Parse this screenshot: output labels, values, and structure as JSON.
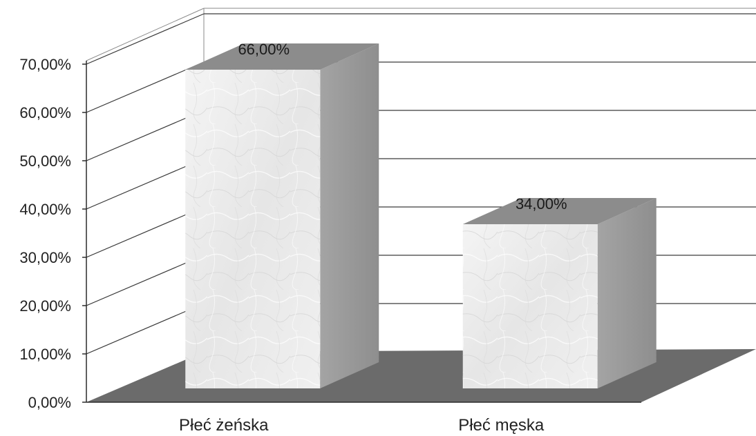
{
  "chart_data": {
    "type": "bar",
    "categories": [
      "Płeć żeńska",
      "Płeć męska"
    ],
    "values": [
      66.0,
      34.0
    ],
    "data_labels": [
      "66,00%",
      "34,00%"
    ],
    "yticks": [
      0,
      10,
      20,
      30,
      40,
      50,
      60,
      70
    ],
    "ytick_labels": [
      "0,00%",
      "10,00%",
      "20,00%",
      "30,00%",
      "40,00%",
      "50,00%",
      "60,00%",
      "70,00%"
    ],
    "ylim": [
      0,
      70
    ],
    "grid": true,
    "legend": "none",
    "title": "",
    "xlabel": "",
    "ylabel": "",
    "colors": {
      "bar_front": "#ececec",
      "bar_top": "#8c8c8c",
      "bar_side": "#9a9a9a",
      "floor": "#6b6b6b",
      "grid": "#3a3a3a"
    }
  }
}
